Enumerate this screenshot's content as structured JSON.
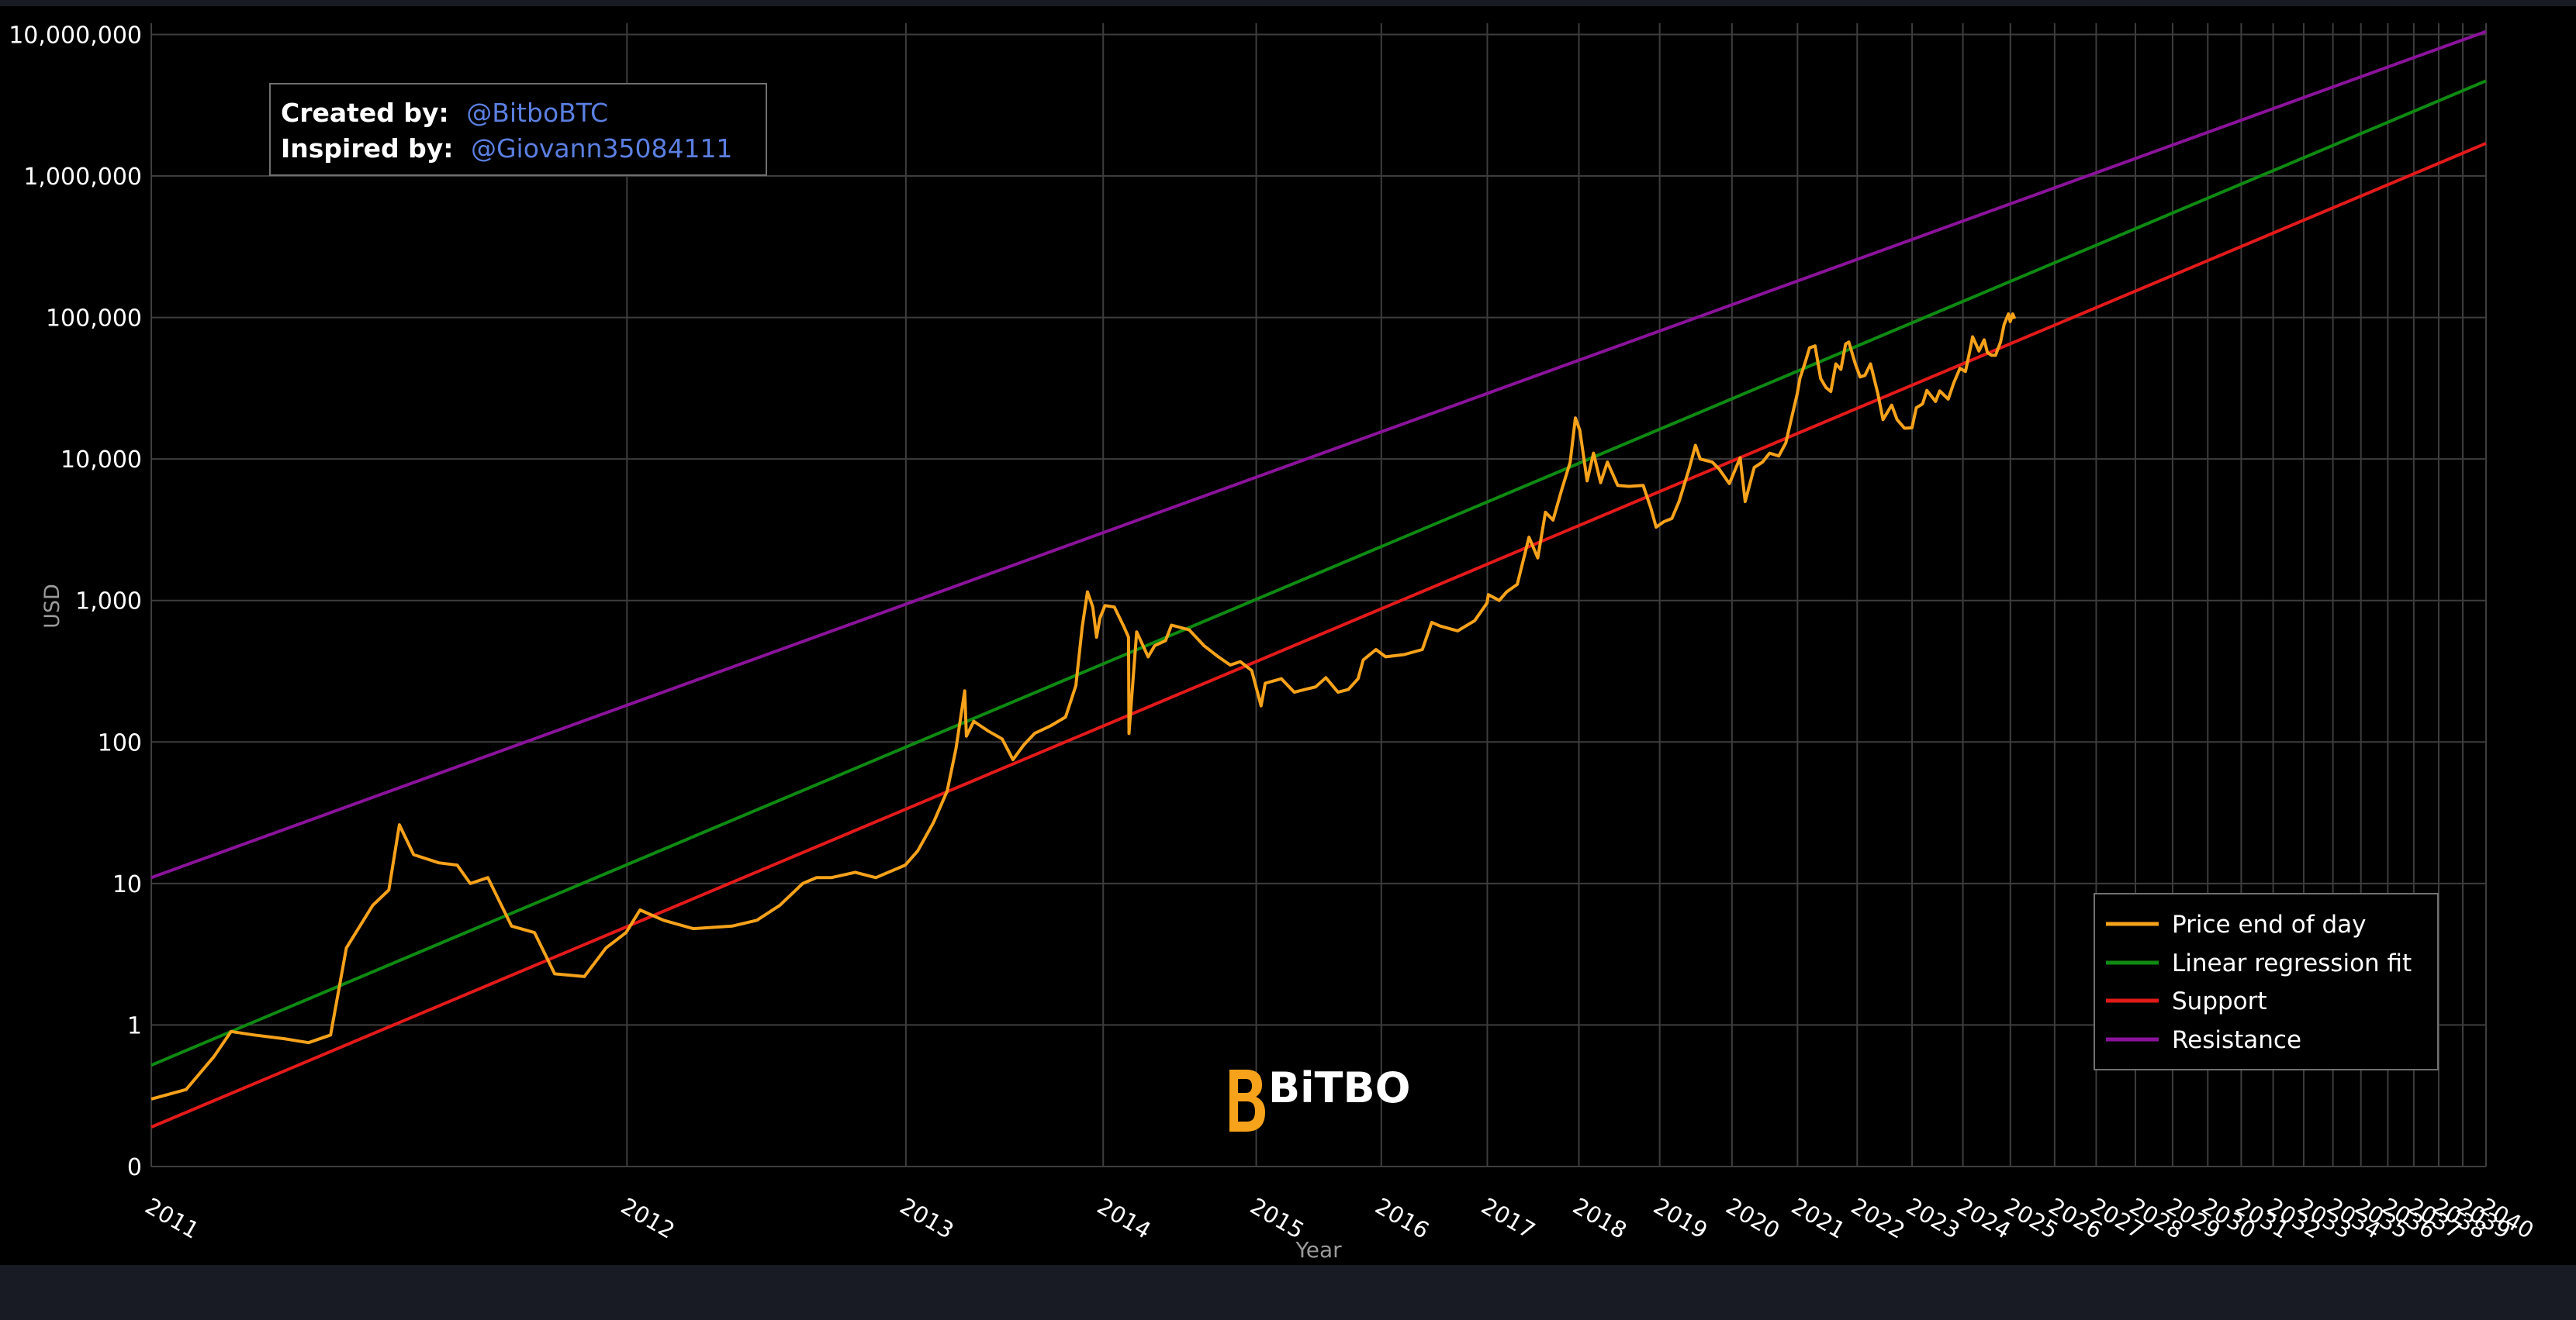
{
  "colors": {
    "background": "#000000",
    "page": "#181b24",
    "grid": "#3d3d3d",
    "price": "#f7a21b",
    "regression": "#0f8a12",
    "support": "#e31a1a",
    "resistance": "#8a139a",
    "credit_link": "#5b7fe0",
    "axis_text": "#ffffff",
    "axis_title": "#9a9a9a"
  },
  "credits": {
    "created_label": "Created by:",
    "created_handle": "@BitboBTC",
    "inspired_label": "Inspired by:",
    "inspired_handle": "@Giovann35084111"
  },
  "watermark": {
    "text": "BiTBO"
  },
  "chart_data": {
    "type": "line",
    "x_scale": "log-time",
    "y_scale": "log",
    "xlabel": "Year",
    "ylabel": "USD",
    "xlim": [
      "2011",
      "2040"
    ],
    "ylim": [
      0.1,
      12000000
    ],
    "grid": true,
    "legend_position": "bottom-right",
    "x_tick_labels": [
      "2011",
      "2012",
      "2013",
      "2014",
      "2015",
      "2016",
      "2017",
      "2018",
      "2019",
      "2020",
      "2021",
      "2022",
      "2023",
      "2024",
      "2025",
      "2026",
      "2027",
      "2028",
      "2029",
      "2030",
      "2031",
      "2032",
      "2033",
      "2034",
      "2035",
      "2036",
      "2037",
      "2038",
      "2039",
      "2040"
    ],
    "y_ticks": [
      {
        "value": 0.1,
        "label": "0"
      },
      {
        "value": 1,
        "label": "1"
      },
      {
        "value": 10,
        "label": "10"
      },
      {
        "value": 100,
        "label": "100"
      },
      {
        "value": 1000,
        "label": "1,000"
      },
      {
        "value": 10000,
        "label": "10,000"
      },
      {
        "value": 100000,
        "label": "100,000"
      },
      {
        "value": 1000000,
        "label": "1,000,000"
      },
      {
        "value": 10000000,
        "label": "10,000,000"
      }
    ],
    "series": [
      {
        "name": "Price end of day",
        "color": "#f7a21b",
        "points": [
          [
            "2011-01-01",
            0.3
          ],
          [
            "2011-01-20",
            0.35
          ],
          [
            "2011-02-05",
            0.6
          ],
          [
            "2011-02-15",
            0.9
          ],
          [
            "2011-03-01",
            0.85
          ],
          [
            "2011-03-20",
            0.8
          ],
          [
            "2011-04-05",
            0.75
          ],
          [
            "2011-04-20",
            0.85
          ],
          [
            "2011-05-01",
            3.5
          ],
          [
            "2011-05-20",
            7
          ],
          [
            "2011-06-01",
            9
          ],
          [
            "2011-06-09",
            26
          ],
          [
            "2011-06-20",
            16
          ],
          [
            "2011-07-10",
            14
          ],
          [
            "2011-07-25",
            13.5
          ],
          [
            "2011-08-05",
            10
          ],
          [
            "2011-08-20",
            11
          ],
          [
            "2011-09-10",
            5
          ],
          [
            "2011-10-01",
            4.5
          ],
          [
            "2011-10-20",
            2.3
          ],
          [
            "2011-11-18",
            2.2
          ],
          [
            "2011-12-10",
            3.5
          ],
          [
            "2011-12-31",
            4.5
          ],
          [
            "2012-01-15",
            6.5
          ],
          [
            "2012-02-10",
            5.5
          ],
          [
            "2012-03-15",
            4.8
          ],
          [
            "2012-05-01",
            5
          ],
          [
            "2012-06-01",
            5.5
          ],
          [
            "2012-07-01",
            7
          ],
          [
            "2012-08-01",
            10
          ],
          [
            "2012-08-20",
            11
          ],
          [
            "2012-09-10",
            11
          ],
          [
            "2012-10-15",
            12
          ],
          [
            "2012-11-15",
            11
          ],
          [
            "2012-12-31",
            13.5
          ],
          [
            "2013-01-20",
            17
          ],
          [
            "2013-02-15",
            27
          ],
          [
            "2013-03-10",
            45
          ],
          [
            "2013-03-25",
            90
          ],
          [
            "2013-04-09",
            230
          ],
          [
            "2013-04-12",
            110
          ],
          [
            "2013-04-25",
            140
          ],
          [
            "2013-05-20",
            120
          ],
          [
            "2013-06-15",
            105
          ],
          [
            "2013-07-05",
            75
          ],
          [
            "2013-07-25",
            95
          ],
          [
            "2013-08-15",
            115
          ],
          [
            "2013-09-15",
            130
          ],
          [
            "2013-10-15",
            150
          ],
          [
            "2013-11-05",
            250
          ],
          [
            "2013-11-18",
            650
          ],
          [
            "2013-11-29",
            1150
          ],
          [
            "2013-12-10",
            900
          ],
          [
            "2013-12-18",
            550
          ],
          [
            "2013-12-25",
            750
          ],
          [
            "2014-01-05",
            920
          ],
          [
            "2014-01-25",
            900
          ],
          [
            "2014-02-15",
            650
          ],
          [
            "2014-02-25",
            550
          ],
          [
            "2014-02-26",
            115
          ],
          [
            "2014-03-15",
            600
          ],
          [
            "2014-04-10",
            400
          ],
          [
            "2014-04-25",
            480
          ],
          [
            "2014-05-20",
            520
          ],
          [
            "2014-06-03",
            670
          ],
          [
            "2014-07-15",
            620
          ],
          [
            "2014-08-20",
            480
          ],
          [
            "2014-09-25",
            400
          ],
          [
            "2014-10-25",
            350
          ],
          [
            "2014-11-20",
            370
          ],
          [
            "2014-12-20",
            320
          ],
          [
            "2015-01-14",
            180
          ],
          [
            "2015-01-25",
            260
          ],
          [
            "2015-03-10",
            280
          ],
          [
            "2015-04-15",
            225
          ],
          [
            "2015-05-15",
            235
          ],
          [
            "2015-06-15",
            245
          ],
          [
            "2015-07-15",
            285
          ],
          [
            "2015-08-20",
            225
          ],
          [
            "2015-09-20",
            235
          ],
          [
            "2015-10-20",
            280
          ],
          [
            "2015-11-05",
            380
          ],
          [
            "2015-12-15",
            450
          ],
          [
            "2016-01-15",
            400
          ],
          [
            "2016-03-15",
            415
          ],
          [
            "2016-05-15",
            450
          ],
          [
            "2016-06-16",
            700
          ],
          [
            "2016-07-15",
            660
          ],
          [
            "2016-09-15",
            610
          ],
          [
            "2016-11-15",
            720
          ],
          [
            "2016-12-31",
            960
          ],
          [
            "2017-01-05",
            1100
          ],
          [
            "2017-02-15",
            1000
          ],
          [
            "2017-03-15",
            1150
          ],
          [
            "2017-04-25",
            1300
          ],
          [
            "2017-06-10",
            2800
          ],
          [
            "2017-07-15",
            2000
          ],
          [
            "2017-08-15",
            4200
          ],
          [
            "2017-09-15",
            3700
          ],
          [
            "2017-10-20",
            6000
          ],
          [
            "2017-11-25",
            9500
          ],
          [
            "2017-12-17",
            19500
          ],
          [
            "2018-01-05",
            16000
          ],
          [
            "2018-02-05",
            7000
          ],
          [
            "2018-03-05",
            11000
          ],
          [
            "2018-04-05",
            6800
          ],
          [
            "2018-05-05",
            9500
          ],
          [
            "2018-06-20",
            6500
          ],
          [
            "2018-08-10",
            6400
          ],
          [
            "2018-10-15",
            6500
          ],
          [
            "2018-11-20",
            4500
          ],
          [
            "2018-12-15",
            3300
          ],
          [
            "2019-01-20",
            3600
          ],
          [
            "2019-03-01",
            3800
          ],
          [
            "2019-04-05",
            5000
          ],
          [
            "2019-05-25",
            8500
          ],
          [
            "2019-06-26",
            12500
          ],
          [
            "2019-07-20",
            10000
          ],
          [
            "2019-09-20",
            9500
          ],
          [
            "2019-10-25",
            8500
          ],
          [
            "2019-12-18",
            6700
          ],
          [
            "2020-02-14",
            10200
          ],
          [
            "2020-03-12",
            5000
          ],
          [
            "2020-04-30",
            8700
          ],
          [
            "2020-06-15",
            9500
          ],
          [
            "2020-07-25",
            11000
          ],
          [
            "2020-09-15",
            10500
          ],
          [
            "2020-10-25",
            13000
          ],
          [
            "2020-11-25",
            19000
          ],
          [
            "2020-12-31",
            29000
          ],
          [
            "2021-01-15",
            37000
          ],
          [
            "2021-02-15",
            48000
          ],
          [
            "2021-03-13",
            61000
          ],
          [
            "2021-04-15",
            63000
          ],
          [
            "2021-05-19",
            37000
          ],
          [
            "2021-06-20",
            32000
          ],
          [
            "2021-07-20",
            30000
          ],
          [
            "2021-08-20",
            47000
          ],
          [
            "2021-09-20",
            43000
          ],
          [
            "2021-10-20",
            65000
          ],
          [
            "2021-11-09",
            67000
          ],
          [
            "2021-12-20",
            47000
          ],
          [
            "2022-01-20",
            38000
          ],
          [
            "2022-02-20",
            39000
          ],
          [
            "2022-03-28",
            47000
          ],
          [
            "2022-05-15",
            29000
          ],
          [
            "2022-06-18",
            19000
          ],
          [
            "2022-08-15",
            24000
          ],
          [
            "2022-09-20",
            19000
          ],
          [
            "2022-11-10",
            16500
          ],
          [
            "2022-12-31",
            16600
          ],
          [
            "2023-01-30",
            23000
          ],
          [
            "2023-03-15",
            24500
          ],
          [
            "2023-04-14",
            30500
          ],
          [
            "2023-06-15",
            25500
          ],
          [
            "2023-07-15",
            30300
          ],
          [
            "2023-09-15",
            26500
          ],
          [
            "2023-10-25",
            34500
          ],
          [
            "2023-12-10",
            43700
          ],
          [
            "2024-01-20",
            41500
          ],
          [
            "2024-02-28",
            62000
          ],
          [
            "2024-03-14",
            73000
          ],
          [
            "2024-05-01",
            58000
          ],
          [
            "2024-06-10",
            69500
          ],
          [
            "2024-07-05",
            56500
          ],
          [
            "2024-08-05",
            54000
          ],
          [
            "2024-09-06",
            54000
          ],
          [
            "2024-10-15",
            67000
          ],
          [
            "2024-11-12",
            89000
          ],
          [
            "2024-12-17",
            106000
          ],
          [
            "2024-12-31",
            93500
          ],
          [
            "2025-01-20",
            106000
          ],
          [
            "2025-02-05",
            98000
          ]
        ]
      },
      {
        "name": "Linear regression fit",
        "color": "#0f8a12",
        "line": [
          [
            "2011-01-01",
            0.52
          ],
          [
            "2040-01-01",
            4700000
          ]
        ]
      },
      {
        "name": "Support",
        "color": "#e31a1a",
        "line": [
          [
            "2011-01-01",
            0.19
          ],
          [
            "2040-01-01",
            1700000
          ]
        ]
      },
      {
        "name": "Resistance",
        "color": "#8a139a",
        "line": [
          [
            "2011-01-01",
            11
          ],
          [
            "2040-01-01",
            10500000
          ]
        ]
      }
    ]
  }
}
